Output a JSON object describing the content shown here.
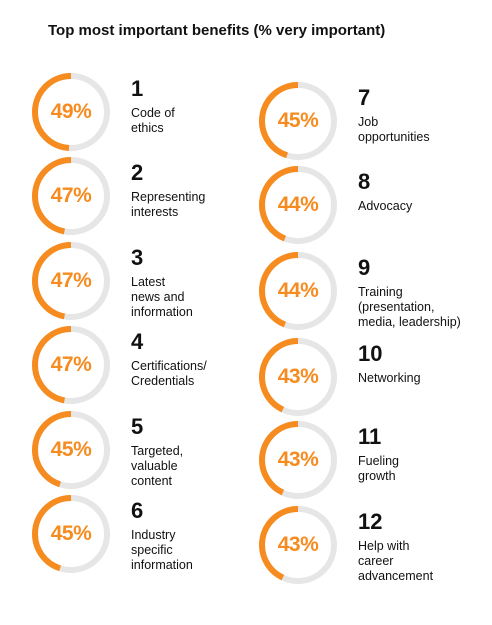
{
  "title": "Top most important benefits (% very important)",
  "colors": {
    "accent": "#f68b1f",
    "track": "#e6e6e6"
  },
  "chart_data": {
    "type": "donut-list",
    "title": "Top most important benefits (% very important)",
    "items": [
      {
        "rank": "1",
        "label": "Code of\nethics",
        "value": 49,
        "display": "49%"
      },
      {
        "rank": "2",
        "label": "Representing\ninterests",
        "value": 47,
        "display": "47%"
      },
      {
        "rank": "3",
        "label": "Latest\nnews and\ninformation",
        "value": 47,
        "display": "47%"
      },
      {
        "rank": "4",
        "label": "Certifications/\nCredentials",
        "value": 47,
        "display": "47%"
      },
      {
        "rank": "5",
        "label": "Targeted,\nvaluable\ncontent",
        "value": 45,
        "display": "45%"
      },
      {
        "rank": "6",
        "label": "Industry\nspecific\ninformation",
        "value": 45,
        "display": "45%"
      },
      {
        "rank": "7",
        "label": "Job\nopportunities",
        "value": 45,
        "display": "45%"
      },
      {
        "rank": "8",
        "label": "Advocacy",
        "value": 44,
        "display": "44%"
      },
      {
        "rank": "9",
        "label": "Training\n(presentation,\nmedia, leadership)",
        "value": 44,
        "display": "44%"
      },
      {
        "rank": "10",
        "label": "Networking",
        "value": 43,
        "display": "43%"
      },
      {
        "rank": "11",
        "label": "Fueling\ngrowth",
        "value": 43,
        "display": "43%"
      },
      {
        "rank": "12",
        "label": "Help with\ncareer\nadvancement",
        "value": 43,
        "display": "43%"
      }
    ]
  }
}
